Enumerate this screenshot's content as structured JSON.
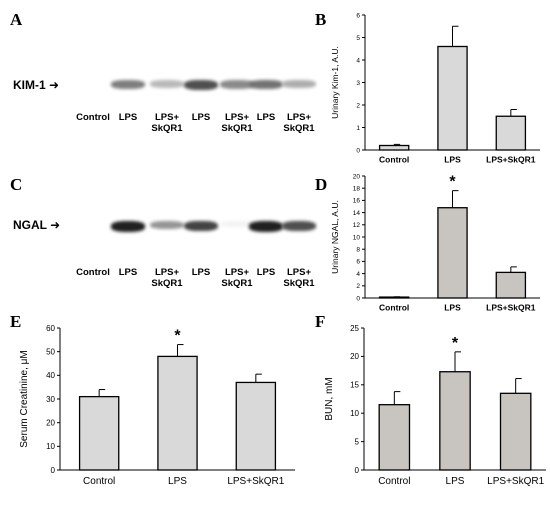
{
  "panels": {
    "A": "A",
    "B": "B",
    "C": "C",
    "D": "D",
    "E": "E",
    "F": "F"
  },
  "blots": [
    {
      "label": "KIM-1",
      "lanes": [
        "Control",
        "LPS",
        "LPS+\nSkQR1",
        "LPS",
        "LPS+\nSkQR1",
        "LPS",
        "LPS+\nSkQR1"
      ],
      "band_intensity": [
        0.0,
        0.55,
        0.3,
        0.75,
        0.5,
        0.6,
        0.35
      ]
    },
    {
      "label": "NGAL",
      "lanes": [
        "Control",
        "LPS",
        "LPS+\nSkQR1",
        "LPS",
        "LPS+\nSkQR1",
        "LPS",
        "LPS+\nSkQR1"
      ],
      "band_intensity": [
        0.0,
        0.95,
        0.45,
        0.8,
        0.05,
        0.95,
        0.75
      ]
    }
  ],
  "chart_data": [
    {
      "id": "B",
      "type": "bar",
      "categories": [
        "Control",
        "LPS",
        "LPS+SkQR1"
      ],
      "values": [
        0.2,
        4.6,
        1.5
      ],
      "errors": [
        0.05,
        0.9,
        0.3
      ],
      "significance": [
        "",
        "",
        ""
      ],
      "ylabel": "Urinary Kim-1, A.U.",
      "ylim": [
        0,
        6
      ],
      "yticks": [
        0,
        1,
        2,
        3,
        4,
        5,
        6
      ],
      "bar_color": "#d9d9d9"
    },
    {
      "id": "D",
      "type": "bar",
      "categories": [
        "Control",
        "LPS",
        "LPS+SkQR1"
      ],
      "values": [
        0.15,
        14.8,
        4.2
      ],
      "errors": [
        0.05,
        2.8,
        0.9
      ],
      "significance": [
        "",
        "*",
        ""
      ],
      "ylabel": "Urinary NGAL, A.U.",
      "ylim": [
        0,
        20
      ],
      "yticks": [
        0,
        2,
        4,
        6,
        8,
        10,
        12,
        14,
        16,
        18,
        20
      ],
      "bar_color": "#c8c4c0"
    },
    {
      "id": "E",
      "type": "bar",
      "categories": [
        "Control",
        "LPS",
        "LPS+SkQR1"
      ],
      "values": [
        31,
        48,
        37
      ],
      "errors": [
        3,
        5,
        3.5
      ],
      "significance": [
        "",
        "*",
        ""
      ],
      "ylabel": "Serum Creatinine, μM",
      "ylim": [
        0,
        60
      ],
      "yticks": [
        0,
        10,
        20,
        30,
        40,
        50,
        60
      ],
      "bar_color": "#d9d9d9"
    },
    {
      "id": "F",
      "type": "bar",
      "categories": [
        "Control",
        "LPS",
        "LPS+SkQR1"
      ],
      "values": [
        11.5,
        17.3,
        13.5
      ],
      "errors": [
        2.3,
        3.5,
        2.6
      ],
      "significance": [
        "",
        "*",
        ""
      ],
      "ylabel": "BUN, mM",
      "ylim": [
        0,
        25
      ],
      "yticks": [
        0,
        5,
        10,
        15,
        20,
        25
      ],
      "bar_color": "#c8c4c0"
    }
  ]
}
